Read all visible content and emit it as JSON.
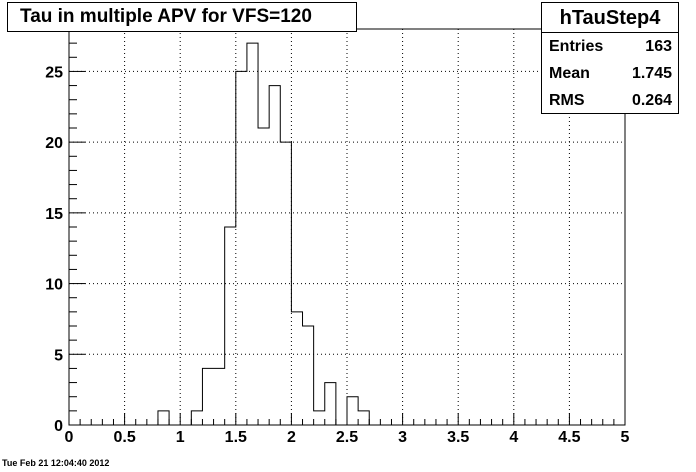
{
  "chart_data": {
    "type": "bar",
    "title": "Tau in multiple APV for VFS=120",
    "histogram_name": "hTauStep4",
    "xlim": [
      0,
      5
    ],
    "ylim": [
      0,
      28
    ],
    "bin_width": 0.1,
    "bin_low_edges": [
      0.8,
      0.9,
      1.0,
      1.1,
      1.2,
      1.3,
      1.4,
      1.5,
      1.6,
      1.7,
      1.8,
      1.9,
      2.0,
      2.1,
      2.2,
      2.3,
      2.4,
      2.5,
      2.6
    ],
    "values": [
      1,
      0,
      0,
      1,
      4,
      4,
      14,
      25,
      27,
      21,
      24,
      20,
      8,
      7,
      1,
      3,
      0,
      2,
      1
    ],
    "x_ticks": [
      "0",
      "0.5",
      "1",
      "1.5",
      "2",
      "2.5",
      "3",
      "3.5",
      "4",
      "4.5",
      "5"
    ],
    "y_ticks": [
      "0",
      "5",
      "10",
      "15",
      "20",
      "25"
    ],
    "grid": true,
    "stats": [
      {
        "label": "Entries",
        "value": "163"
      },
      {
        "label": "Mean",
        "value": "1.745"
      },
      {
        "label": "RMS",
        "value": "0.264"
      }
    ]
  },
  "footer": "Tue Feb 21 12:04:40 2012"
}
